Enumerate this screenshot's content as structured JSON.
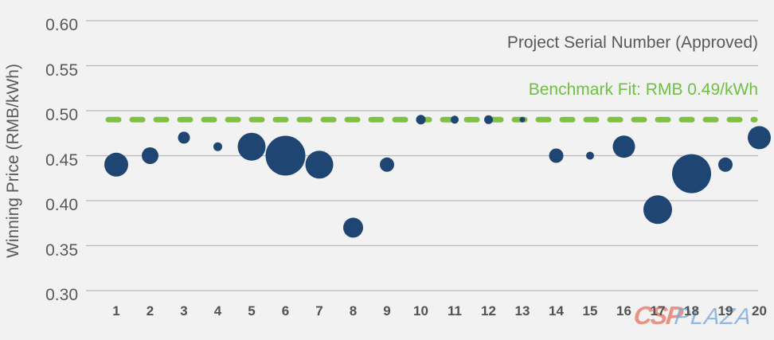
{
  "texts": {
    "x_axis_annotation": "Project Serial Number (Approved)",
    "benchmark_annotation": "Benchmark Fit: RMB 0.49/kWh",
    "y_axis_title": "Winning Price (RMB/kWh)"
  },
  "watermark": {
    "part1": "CSP",
    "part2": "PLAZA"
  },
  "colors": {
    "background": "#f2f2f2",
    "bubble_fill": "#1f4572",
    "benchmark_line_green": "#7fc241",
    "benchmark_text_green": "#70bf44",
    "gridline": "#bababa",
    "axis_text": "#595959",
    "watermark_red": "#e1543c",
    "watermark_blue": "#78a8db"
  },
  "chart_data": {
    "type": "scatter",
    "title": "",
    "xlabel": "Project Serial Number (Approved)",
    "ylabel": "Winning Price (RMB/kWh)",
    "x": [
      1,
      2,
      3,
      4,
      5,
      6,
      7,
      8,
      9,
      10,
      11,
      12,
      13,
      14,
      15,
      16,
      17,
      18,
      19,
      20
    ],
    "y": [
      0.44,
      0.45,
      0.47,
      0.46,
      0.46,
      0.45,
      0.44,
      0.37,
      0.44,
      0.49,
      0.49,
      0.49,
      0.49,
      0.45,
      0.45,
      0.46,
      0.39,
      0.43,
      0.44,
      0.47
    ],
    "bubble_radius_px": [
      15,
      10.5,
      7.5,
      5.5,
      17.5,
      25,
      17.5,
      12.5,
      9,
      6,
      5,
      5.5,
      3.5,
      9,
      5,
      14,
      18,
      24.5,
      9,
      14.5
    ],
    "benchmark": {
      "value": 0.49,
      "label": "Benchmark Fit: RMB 0.49/kWh"
    },
    "ylim": [
      0.3,
      0.6
    ],
    "yticks": [
      0.3,
      0.35,
      0.4,
      0.45,
      0.5,
      0.55,
      0.6
    ],
    "ytick_labels": [
      "0.30",
      "0.35",
      "0.40",
      "0.45",
      "0.50",
      "0.55",
      "0.60"
    ],
    "xticks": [
      1,
      2,
      3,
      4,
      5,
      6,
      7,
      8,
      9,
      10,
      11,
      12,
      13,
      14,
      15,
      16,
      17,
      18,
      19,
      20
    ],
    "grid": true,
    "legend_position": "none"
  }
}
